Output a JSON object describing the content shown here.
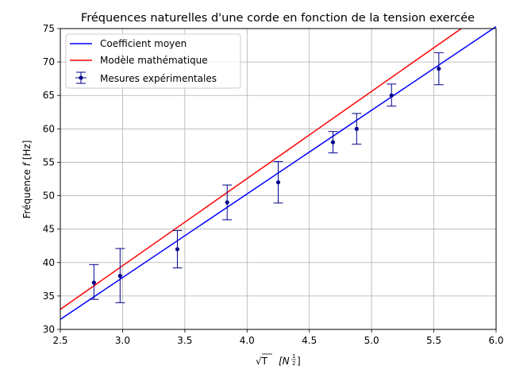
{
  "chart_data": {
    "type": "scatter",
    "title": "Fréquences naturelles d'une corde en fonction de la tension exercée",
    "xlabel_symbol": "√T",
    "xlabel_unit": "[N",
    "xlabel_exp_num": "1",
    "xlabel_exp_den": "2",
    "xlabel_unit_close": "]",
    "ylabel": "Fréquence",
    "ylabel_var": "f",
    "ylabel_unit": "[Hz]",
    "xlim": [
      2.5,
      6.0
    ],
    "ylim": [
      30,
      75
    ],
    "xticks": [
      2.5,
      3.0,
      3.5,
      4.0,
      4.5,
      5.0,
      5.5,
      6.0
    ],
    "yticks": [
      30,
      35,
      40,
      45,
      50,
      55,
      60,
      65,
      70,
      75
    ],
    "grid": true,
    "legend_position": "top-left",
    "series": [
      {
        "name": "Coefficient moyen",
        "kind": "line",
        "color": "#0000ff",
        "x": [
          2.5,
          6.0
        ],
        "y": [
          31.5,
          75.3
        ]
      },
      {
        "name": "Modèle mathématique",
        "kind": "line",
        "color": "#ff0000",
        "x": [
          2.5,
          5.72
        ],
        "y": [
          33.0,
          75.0
        ]
      },
      {
        "name": "Mesures expérimentales",
        "kind": "errorbar",
        "color": "#00008b",
        "x": [
          2.77,
          2.98,
          3.44,
          3.84,
          4.25,
          4.69,
          4.88,
          5.16,
          5.54
        ],
        "y": [
          37.0,
          38.0,
          42.0,
          49.0,
          52.0,
          58.0,
          60.0,
          65.0,
          69.0
        ],
        "yerr_low": [
          34.5,
          34.0,
          39.2,
          46.4,
          48.9,
          56.4,
          57.7,
          63.4,
          66.6
        ],
        "yerr_high": [
          39.7,
          42.1,
          44.8,
          51.6,
          55.1,
          59.6,
          62.3,
          66.7,
          71.4
        ]
      }
    ]
  }
}
